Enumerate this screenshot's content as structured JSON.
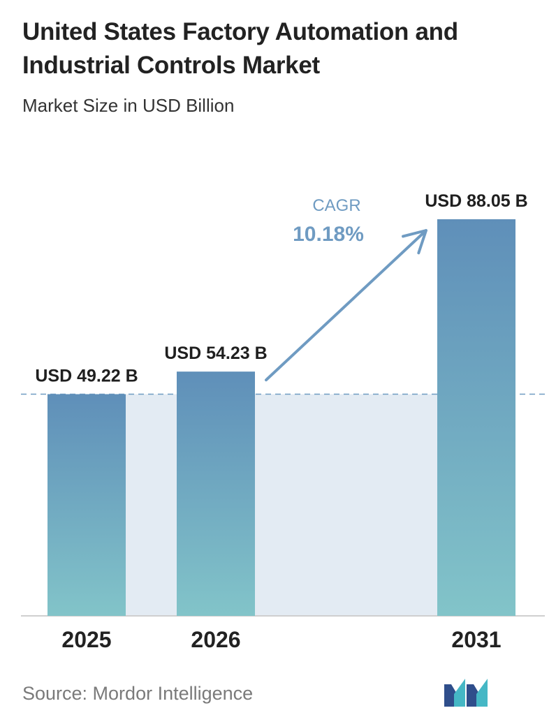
{
  "chart_data": {
    "type": "bar",
    "title": "United States Factory Automation and Industrial Controls Market",
    "subtitle": "Market Size in USD Billion",
    "categories": [
      "2025",
      "2026",
      "2031"
    ],
    "values": [
      49.22,
      54.23,
      88.05
    ],
    "value_labels": [
      "USD 49.22 B",
      "USD 54.23 B",
      "USD 88.05 B"
    ],
    "unit": "USD Billion",
    "cagr_label": "CAGR",
    "cagr_value": "10.18%",
    "grid": false,
    "legend": "none",
    "colors": {
      "bar_top": "#5f8fb9",
      "bar_bottom": "#82c4c9",
      "band": "#e3ebf3",
      "arrow": "#6f9bc2",
      "cagr_text": "#6f9bc2",
      "dashed_line": "#6f9bc2",
      "baseline": "#cfcfcf"
    }
  },
  "source": "Source:  Mordor Intelligence",
  "logo": {
    "icon": "mordor-intelligence-logo-icon",
    "colors": [
      "#2f4e8b",
      "#45b7c5"
    ]
  }
}
